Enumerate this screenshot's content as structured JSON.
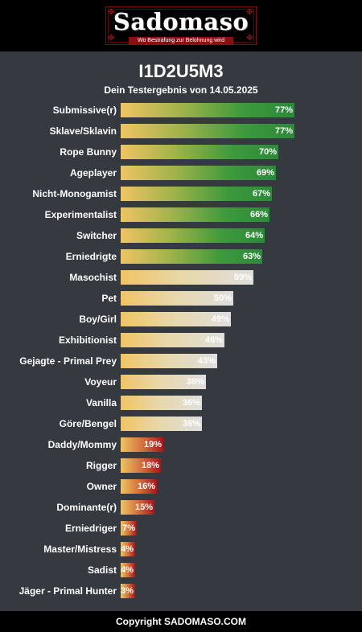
{
  "header": {
    "logo_title": "Sadomaso",
    "logo_tagline": "Wo Bestrafung zur Belohnung wird"
  },
  "result": {
    "title": "I1D2U5M3",
    "subtitle": "Dein Testergebnis von 14.05.2025"
  },
  "colors": {
    "background": "#353a40",
    "high": "#2b8a3a",
    "mid": "#dedede",
    "low": "#a8141c",
    "bar_start": "#f0c463"
  },
  "chart_data": {
    "type": "bar",
    "orientation": "horizontal",
    "xlim": [
      0,
      100
    ],
    "categories": [
      "Submissive(r)",
      "Sklave/Sklavin",
      "Rope Bunny",
      "Ageplayer",
      "Nicht-Monogamist",
      "Experimentalist",
      "Switcher",
      "Erniedrigte",
      "Masochist",
      "Pet",
      "Boy/Girl",
      "Exhibitionist",
      "Gejagte - Primal Prey",
      "Voyeur",
      "Vanilla",
      "Göre/Bengel",
      "Daddy/Mommy",
      "Rigger",
      "Owner",
      "Dominante(r)",
      "Erniedriger",
      "Master/Mistress",
      "Sadist",
      "Jäger - Primal Hunter"
    ],
    "values": [
      77,
      77,
      70,
      69,
      67,
      66,
      64,
      63,
      59,
      50,
      49,
      46,
      43,
      38,
      36,
      36,
      19,
      18,
      16,
      15,
      7,
      4,
      4,
      3
    ],
    "labels": [
      "77%",
      "77%",
      "70%",
      "69%",
      "67%",
      "66%",
      "64%",
      "63%",
      "59%",
      "50%",
      "49%",
      "46%",
      "43%",
      "38%",
      "36%",
      "36%",
      "19%",
      "18%",
      "16%",
      "15%",
      "7%",
      "4%",
      "4%",
      "3%"
    ],
    "tiers": [
      "high",
      "high",
      "high",
      "high",
      "high",
      "high",
      "high",
      "high",
      "mid",
      "mid",
      "mid",
      "mid",
      "mid",
      "mid",
      "mid",
      "mid",
      "low",
      "low",
      "low",
      "low",
      "low",
      "low",
      "low",
      "low"
    ]
  },
  "footer": {
    "copyright": "Copyright SADOMASO.COM"
  }
}
